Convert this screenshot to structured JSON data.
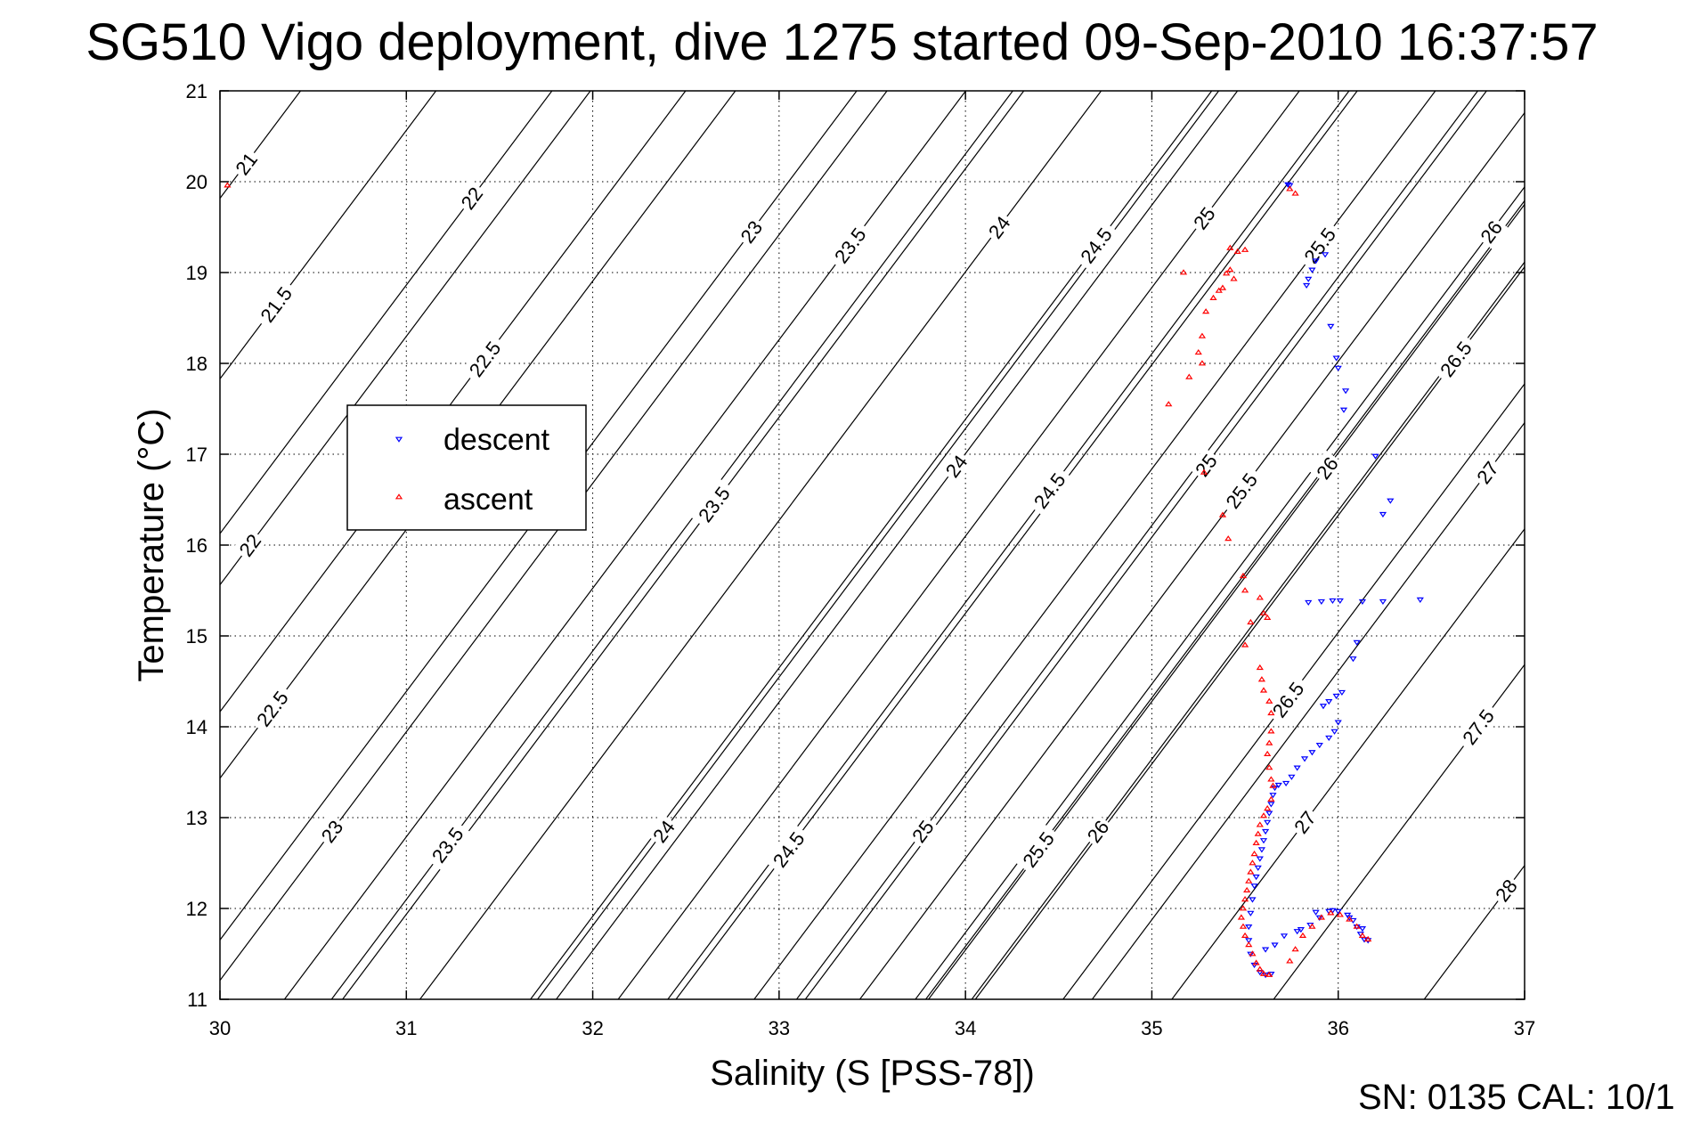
{
  "chart_data": {
    "type": "scatter",
    "title": "SG510 Vigo deployment, dive 1275 started 09-Sep-2010 16:37:57",
    "xlabel": "Salinity (S [PSS-78])",
    "ylabel": "Temperature (°C)",
    "xlim": [
      30,
      37
    ],
    "ylim": [
      11,
      21
    ],
    "xticks": [
      "30",
      "31",
      "32",
      "33",
      "34",
      "35",
      "36",
      "37"
    ],
    "yticks": [
      "11",
      "12",
      "13",
      "14",
      "15",
      "16",
      "17",
      "18",
      "19",
      "20",
      "21"
    ],
    "grid": true,
    "legend_position": "center-left",
    "footer": "SN: 0135  CAL: 10/1",
    "isopycnals": [
      {
        "label": "21",
        "at": [
          30.14,
          20.2
        ]
      },
      {
        "label": "21.5",
        "at": [
          30.3,
          18.65
        ]
      },
      {
        "label": "22",
        "at": [
          31.35,
          19.82
        ]
      },
      {
        "label": "22",
        "at": [
          30.16,
          16.0
        ]
      },
      {
        "label": "22.5",
        "at": [
          31.42,
          18.05
        ]
      },
      {
        "label": "22.5",
        "at": [
          30.28,
          14.2
        ]
      },
      {
        "label": "23",
        "at": [
          32.85,
          19.45
        ]
      },
      {
        "label": "23",
        "at": [
          30.6,
          12.85
        ]
      },
      {
        "label": "23.5",
        "at": [
          33.38,
          19.3
        ]
      },
      {
        "label": "23.5",
        "at": [
          32.65,
          16.45
        ]
      },
      {
        "label": "23.5",
        "at": [
          31.22,
          12.7
        ]
      },
      {
        "label": "24",
        "at": [
          34.18,
          19.5
        ]
      },
      {
        "label": "24",
        "at": [
          33.95,
          16.87
        ]
      },
      {
        "label": "24",
        "at": [
          32.38,
          12.85
        ]
      },
      {
        "label": "24.5",
        "at": [
          34.7,
          19.3
        ]
      },
      {
        "label": "24.5",
        "at": [
          34.45,
          16.6
        ]
      },
      {
        "label": "24.5",
        "at": [
          33.05,
          12.65
        ]
      },
      {
        "label": "25",
        "at": [
          35.28,
          19.6
        ]
      },
      {
        "label": "25",
        "at": [
          35.29,
          16.88
        ]
      },
      {
        "label": "25",
        "at": [
          33.77,
          12.85
        ]
      },
      {
        "label": "25.5",
        "at": [
          35.9,
          19.3
        ]
      },
      {
        "label": "25.5",
        "at": [
          35.48,
          16.6
        ]
      },
      {
        "label": "25.5",
        "at": [
          34.39,
          12.65
        ]
      },
      {
        "label": "26",
        "at": [
          36.82,
          19.45
        ]
      },
      {
        "label": "26",
        "at": [
          35.94,
          16.85
        ]
      },
      {
        "label": "26",
        "at": [
          34.71,
          12.85
        ]
      },
      {
        "label": "26.5",
        "at": [
          36.63,
          18.05
        ]
      },
      {
        "label": "26.5",
        "at": [
          35.73,
          14.3
        ]
      },
      {
        "label": "27",
        "at": [
          36.8,
          16.8
        ]
      },
      {
        "label": "27",
        "at": [
          35.82,
          12.95
        ]
      },
      {
        "label": "27.5",
        "at": [
          36.75,
          14.0
        ]
      },
      {
        "label": "28",
        "at": [
          36.9,
          12.2
        ]
      }
    ],
    "series": [
      {
        "name": "descent",
        "color": "#0000ff",
        "marker": "triangle-down",
        "points": [
          [
            35.73,
            19.97
          ],
          [
            35.74,
            19.96
          ],
          [
            35.93,
            19.2
          ],
          [
            35.88,
            19.13
          ],
          [
            35.86,
            19.03
          ],
          [
            35.84,
            18.93
          ],
          [
            35.83,
            18.86
          ],
          [
            35.96,
            18.41
          ],
          [
            35.99,
            18.06
          ],
          [
            36.0,
            17.95
          ],
          [
            36.04,
            17.7
          ],
          [
            36.03,
            17.49
          ],
          [
            36.2,
            16.98
          ],
          [
            36.28,
            16.49
          ],
          [
            36.24,
            16.34
          ],
          [
            35.84,
            15.37
          ],
          [
            35.91,
            15.38
          ],
          [
            35.97,
            15.39
          ],
          [
            36.01,
            15.39
          ],
          [
            36.13,
            15.38
          ],
          [
            36.24,
            15.38
          ],
          [
            36.44,
            15.4
          ],
          [
            36.1,
            14.93
          ],
          [
            36.08,
            14.75
          ],
          [
            36.02,
            14.38
          ],
          [
            35.99,
            14.34
          ],
          [
            35.95,
            14.28
          ],
          [
            35.92,
            14.23
          ],
          [
            36.0,
            14.05
          ],
          [
            35.98,
            13.95
          ],
          [
            35.95,
            13.88
          ],
          [
            35.9,
            13.8
          ],
          [
            35.86,
            13.72
          ],
          [
            35.82,
            13.65
          ],
          [
            35.78,
            13.55
          ],
          [
            35.75,
            13.45
          ],
          [
            35.72,
            13.38
          ],
          [
            35.68,
            13.36
          ],
          [
            35.66,
            13.33
          ],
          [
            35.65,
            13.25
          ],
          [
            35.64,
            13.15
          ],
          [
            35.63,
            13.05
          ],
          [
            35.62,
            12.95
          ],
          [
            35.61,
            12.85
          ],
          [
            35.6,
            12.75
          ],
          [
            35.59,
            12.65
          ],
          [
            35.58,
            12.55
          ],
          [
            35.57,
            12.45
          ],
          [
            35.56,
            12.35
          ],
          [
            35.55,
            12.25
          ],
          [
            35.54,
            12.1
          ],
          [
            35.53,
            11.95
          ],
          [
            35.52,
            11.8
          ],
          [
            35.52,
            11.65
          ],
          [
            35.53,
            11.5
          ],
          [
            35.55,
            11.38
          ],
          [
            35.58,
            11.3
          ],
          [
            35.61,
            11.27
          ],
          [
            35.64,
            11.28
          ],
          [
            35.61,
            11.55
          ],
          [
            35.66,
            11.6
          ],
          [
            35.71,
            11.7
          ],
          [
            35.78,
            11.75
          ],
          [
            35.85,
            11.82
          ],
          [
            35.9,
            11.9
          ],
          [
            35.95,
            11.97
          ],
          [
            36.0,
            11.97
          ],
          [
            36.05,
            11.93
          ],
          [
            36.08,
            11.87
          ],
          [
            36.1,
            11.8
          ],
          [
            36.12,
            11.72
          ],
          [
            36.14,
            11.66
          ],
          [
            36.16,
            11.65
          ],
          [
            36.13,
            11.78
          ],
          [
            36.06,
            11.9
          ],
          [
            35.97,
            11.98
          ],
          [
            35.88,
            11.96
          ],
          [
            35.8,
            11.77
          ]
        ]
      },
      {
        "name": "ascent",
        "color": "#ff0000",
        "marker": "triangle-up",
        "points": [
          [
            30.04,
            19.96
          ],
          [
            35.74,
            19.92
          ],
          [
            35.77,
            19.87
          ],
          [
            35.17,
            19.0
          ],
          [
            35.42,
            19.27
          ],
          [
            35.5,
            19.25
          ],
          [
            35.46,
            19.23
          ],
          [
            35.42,
            19.03
          ],
          [
            35.4,
            18.99
          ],
          [
            35.44,
            18.93
          ],
          [
            35.38,
            18.83
          ],
          [
            35.36,
            18.8
          ],
          [
            35.33,
            18.72
          ],
          [
            35.29,
            18.57
          ],
          [
            35.27,
            18.3
          ],
          [
            35.25,
            18.12
          ],
          [
            35.27,
            18.0
          ],
          [
            35.2,
            17.85
          ],
          [
            35.09,
            17.55
          ],
          [
            35.28,
            16.8
          ],
          [
            35.38,
            16.33
          ],
          [
            35.41,
            16.07
          ],
          [
            35.49,
            15.66
          ],
          [
            35.5,
            15.5
          ],
          [
            35.58,
            15.42
          ],
          [
            35.6,
            15.25
          ],
          [
            35.62,
            15.2
          ],
          [
            35.53,
            15.15
          ],
          [
            35.5,
            14.9
          ],
          [
            35.58,
            14.65
          ],
          [
            35.59,
            14.52
          ],
          [
            35.6,
            14.4
          ],
          [
            35.63,
            14.28
          ],
          [
            35.64,
            14.15
          ],
          [
            35.64,
            13.95
          ],
          [
            35.63,
            13.82
          ],
          [
            35.62,
            13.7
          ],
          [
            35.63,
            13.55
          ],
          [
            35.64,
            13.42
          ],
          [
            35.65,
            13.35
          ],
          [
            35.64,
            13.2
          ],
          [
            35.62,
            13.1
          ],
          [
            35.6,
            13.02
          ],
          [
            35.58,
            12.92
          ],
          [
            35.57,
            12.82
          ],
          [
            35.56,
            12.72
          ],
          [
            35.55,
            12.6
          ],
          [
            35.54,
            12.5
          ],
          [
            35.53,
            12.4
          ],
          [
            35.52,
            12.3
          ],
          [
            35.51,
            12.2
          ],
          [
            35.5,
            12.1
          ],
          [
            35.49,
            12.0
          ],
          [
            35.48,
            11.9
          ],
          [
            35.49,
            11.8
          ],
          [
            35.5,
            11.7
          ],
          [
            35.52,
            11.6
          ],
          [
            35.54,
            11.5
          ],
          [
            35.56,
            11.4
          ],
          [
            35.58,
            11.33
          ],
          [
            35.6,
            11.28
          ],
          [
            35.63,
            11.27
          ],
          [
            35.74,
            11.42
          ],
          [
            35.77,
            11.55
          ],
          [
            35.81,
            11.7
          ],
          [
            35.86,
            11.8
          ],
          [
            35.91,
            11.9
          ],
          [
            35.96,
            11.95
          ],
          [
            36.01,
            11.93
          ],
          [
            36.06,
            11.88
          ],
          [
            36.1,
            11.8
          ],
          [
            36.13,
            11.7
          ],
          [
            36.16,
            11.66
          ]
        ]
      }
    ]
  }
}
